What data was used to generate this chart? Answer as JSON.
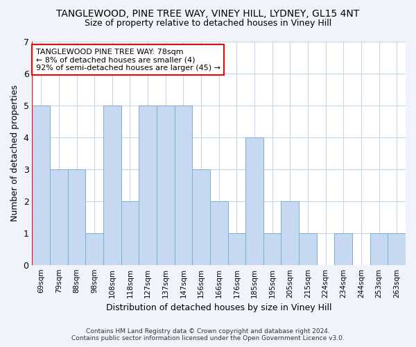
{
  "title1": "TANGLEWOOD, PINE TREE WAY, VINEY HILL, LYDNEY, GL15 4NT",
  "title2": "Size of property relative to detached houses in Viney Hill",
  "xlabel": "Distribution of detached houses by size in Viney Hill",
  "ylabel": "Number of detached properties",
  "categories": [
    "69sqm",
    "79sqm",
    "88sqm",
    "98sqm",
    "108sqm",
    "118sqm",
    "127sqm",
    "137sqm",
    "147sqm",
    "156sqm",
    "166sqm",
    "176sqm",
    "185sqm",
    "195sqm",
    "205sqm",
    "215sqm",
    "224sqm",
    "234sqm",
    "244sqm",
    "253sqm",
    "263sqm"
  ],
  "values": [
    5,
    3,
    3,
    1,
    5,
    2,
    5,
    5,
    5,
    3,
    2,
    1,
    4,
    1,
    2,
    1,
    0,
    1,
    0,
    1,
    1
  ],
  "bar_color": "#c6d9f1",
  "bar_edge_color": "#7bafd4",
  "red_line_x": -0.5,
  "annotation_line1": "TANGLEWOOD PINE TREE WAY: 78sqm",
  "annotation_line2": "← 8% of detached houses are smaller (4)",
  "annotation_line3": "92% of semi-detached houses are larger (45) →",
  "footer1": "Contains HM Land Registry data © Crown copyright and database right 2024.",
  "footer2": "Contains public sector information licensed under the Open Government Licence v3.0.",
  "ylim": [
    0,
    7
  ],
  "yticks": [
    0,
    1,
    2,
    3,
    4,
    5,
    6,
    7
  ],
  "plot_bg_color": "#ffffff",
  "fig_bg_color": "#f0f4fa",
  "grid_color": "#c8d4e8",
  "title1_fontsize": 10,
  "title2_fontsize": 9
}
